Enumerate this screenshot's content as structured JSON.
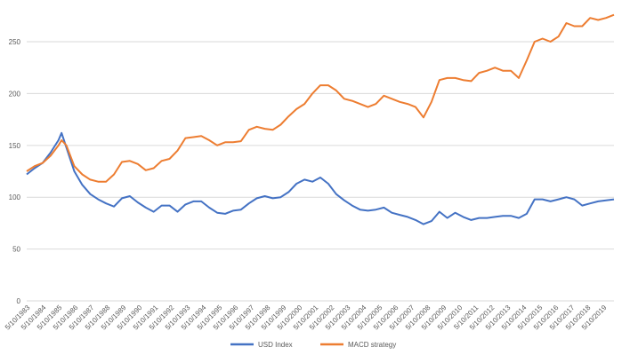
{
  "chart_data": {
    "type": "line",
    "title": "",
    "xlabel": "",
    "ylabel": "",
    "ylim": [
      0,
      280
    ],
    "y_ticks": [
      0,
      50,
      100,
      150,
      200,
      250
    ],
    "grid": "horizontal",
    "legend_position": "bottom-center",
    "x_tick_labels": [
      "5/10/1983",
      "5/10/1984",
      "5/10/1985",
      "5/10/1986",
      "5/10/1987",
      "5/10/1988",
      "5/10/1989",
      "5/10/1990",
      "5/10/1991",
      "5/10/1992",
      "5/10/1993",
      "5/10/1994",
      "5/10/1995",
      "5/10/1996",
      "5/10/1997",
      "5/10/1998",
      "5/10/1999",
      "5/10/2000",
      "5/10/2001",
      "5/10/2002",
      "5/10/2003",
      "5/10/2004",
      "5/10/2005",
      "5/10/2006",
      "5/10/2007",
      "5/10/2008",
      "5/10/2009",
      "5/10/2010",
      "5/10/2011",
      "5/10/2012",
      "5/10/2013",
      "5/10/2014",
      "5/10/2015",
      "5/10/2016",
      "5/10/2017",
      "5/10/2018",
      "5/10/2019"
    ],
    "x": [
      1983.0,
      1983.5,
      1984.0,
      1984.5,
      1985.0,
      1985.2,
      1985.5,
      1986.0,
      1986.5,
      1987.0,
      1987.5,
      1988.0,
      1988.5,
      1989.0,
      1989.5,
      1990.0,
      1990.5,
      1991.0,
      1991.5,
      1992.0,
      1992.5,
      1993.0,
      1993.5,
      1994.0,
      1994.5,
      1995.0,
      1995.5,
      1996.0,
      1996.5,
      1997.0,
      1997.5,
      1998.0,
      1998.5,
      1999.0,
      1999.5,
      2000.0,
      2000.5,
      2001.0,
      2001.5,
      2002.0,
      2002.5,
      2003.0,
      2003.5,
      2004.0,
      2004.5,
      2005.0,
      2005.5,
      2006.0,
      2006.5,
      2007.0,
      2007.5,
      2008.0,
      2008.5,
      2009.0,
      2009.5,
      2010.0,
      2010.5,
      2011.0,
      2011.5,
      2012.0,
      2012.5,
      2013.0,
      2013.5,
      2014.0,
      2014.5,
      2015.0,
      2015.5,
      2016.0,
      2016.5,
      2017.0,
      2017.5,
      2018.0,
      2018.5,
      2019.0,
      2019.5,
      2020.0
    ],
    "series": [
      {
        "name": "USD Index",
        "color": "#4472C4",
        "values": [
          122,
          128,
          133,
          143,
          155,
          162,
          148,
          125,
          112,
          103,
          98,
          94,
          91,
          99,
          101,
          95,
          90,
          86,
          92,
          92,
          86,
          93,
          96,
          96,
          90,
          85,
          84,
          87,
          88,
          94,
          99,
          101,
          99,
          100,
          105,
          113,
          117,
          115,
          119,
          113,
          103,
          97,
          92,
          88,
          87,
          88,
          90,
          85,
          83,
          81,
          78,
          74,
          77,
          86,
          80,
          85,
          81,
          78,
          80,
          80,
          81,
          82,
          82,
          80,
          84,
          98,
          98,
          96,
          98,
          100,
          98,
          92,
          94,
          96,
          97,
          98
        ]
      },
      {
        "name": "MACD strategy",
        "color": "#ED7D31",
        "values": [
          125,
          130,
          133,
          140,
          150,
          155,
          150,
          130,
          122,
          117,
          115,
          115,
          122,
          134,
          135,
          132,
          126,
          128,
          135,
          137,
          145,
          157,
          158,
          159,
          155,
          150,
          153,
          153,
          154,
          165,
          168,
          166,
          165,
          170,
          178,
          185,
          190,
          200,
          208,
          208,
          203,
          195,
          193,
          190,
          187,
          190,
          198,
          195,
          192,
          190,
          187,
          177,
          192,
          213,
          215,
          215,
          213,
          212,
          220,
          222,
          225,
          222,
          222,
          215,
          232,
          250,
          253,
          250,
          255,
          268,
          265,
          265,
          273,
          271,
          273,
          276
        ]
      }
    ]
  }
}
